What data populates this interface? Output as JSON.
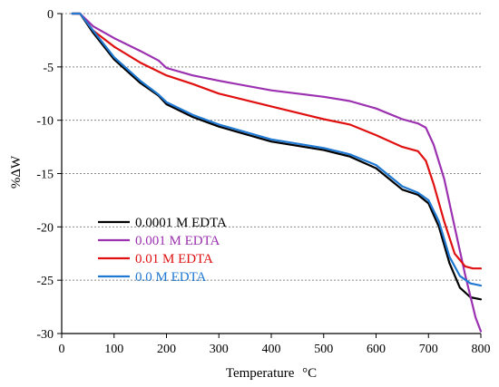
{
  "chart_data": {
    "type": "line",
    "title": "",
    "xlabel": "Temperature",
    "xlabel_unit": "°C",
    "ylabel": "%ΔW",
    "xlim": [
      0,
      800
    ],
    "ylim": [
      -30,
      0
    ],
    "xticks": [
      0,
      100,
      200,
      300,
      400,
      500,
      600,
      700,
      800
    ],
    "yticks": [
      0,
      -5,
      -10,
      -15,
      -20,
      -25,
      -30
    ],
    "grid": "horizontal dotted",
    "legend_position": "lower-left",
    "series": [
      {
        "name": "0.0001 M EDTA",
        "color": "#000000",
        "x": [
          20,
          35,
          60,
          100,
          150,
          185,
          200,
          250,
          300,
          400,
          500,
          550,
          600,
          650,
          680,
          700,
          720,
          740,
          760,
          780,
          800
        ],
        "y": [
          0,
          0,
          -1.8,
          -4.3,
          -6.5,
          -7.7,
          -8.5,
          -9.7,
          -10.6,
          -12,
          -12.8,
          -13.4,
          -14.5,
          -16.5,
          -17,
          -17.8,
          -20,
          -23.4,
          -25.7,
          -26.6,
          -26.8
        ]
      },
      {
        "name": "0.001 M EDTA",
        "color": "#9b30b0",
        "x": [
          20,
          35,
          60,
          100,
          150,
          185,
          200,
          250,
          300,
          400,
          500,
          550,
          600,
          650,
          680,
          695,
          710,
          730,
          750,
          770,
          790,
          800
        ],
        "y": [
          0,
          0,
          -1.2,
          -2.3,
          -3.5,
          -4.4,
          -5.1,
          -5.8,
          -6.3,
          -7.2,
          -7.8,
          -8.2,
          -8.9,
          -9.9,
          -10.3,
          -10.7,
          -12.3,
          -15.5,
          -20,
          -24.5,
          -28.5,
          -29.8
        ]
      },
      {
        "name": "0.01 M EDTA",
        "color": "#e01010",
        "x": [
          20,
          35,
          60,
          100,
          150,
          200,
          250,
          300,
          400,
          500,
          550,
          600,
          650,
          680,
          695,
          710,
          730,
          750,
          770,
          785,
          800
        ],
        "y": [
          0,
          0,
          -1.6,
          -3.1,
          -4.6,
          -5.8,
          -6.6,
          -7.5,
          -8.7,
          -9.9,
          -10.4,
          -11.4,
          -12.5,
          -12.9,
          -13.8,
          -16,
          -19.5,
          -22.5,
          -23.7,
          -23.9,
          -23.9
        ]
      },
      {
        "name": "0.0 M EDTA",
        "color": "#1f78d1",
        "x": [
          20,
          35,
          60,
          100,
          150,
          185,
          200,
          250,
          300,
          400,
          500,
          550,
          600,
          650,
          680,
          700,
          720,
          740,
          760,
          780,
          800
        ],
        "y": [
          0,
          0,
          -1.6,
          -4.1,
          -6.3,
          -7.6,
          -8.3,
          -9.5,
          -10.4,
          -11.8,
          -12.6,
          -13.2,
          -14.2,
          -16.2,
          -16.8,
          -17.5,
          -19.5,
          -22.8,
          -24.6,
          -25.3,
          -25.5
        ]
      }
    ]
  }
}
